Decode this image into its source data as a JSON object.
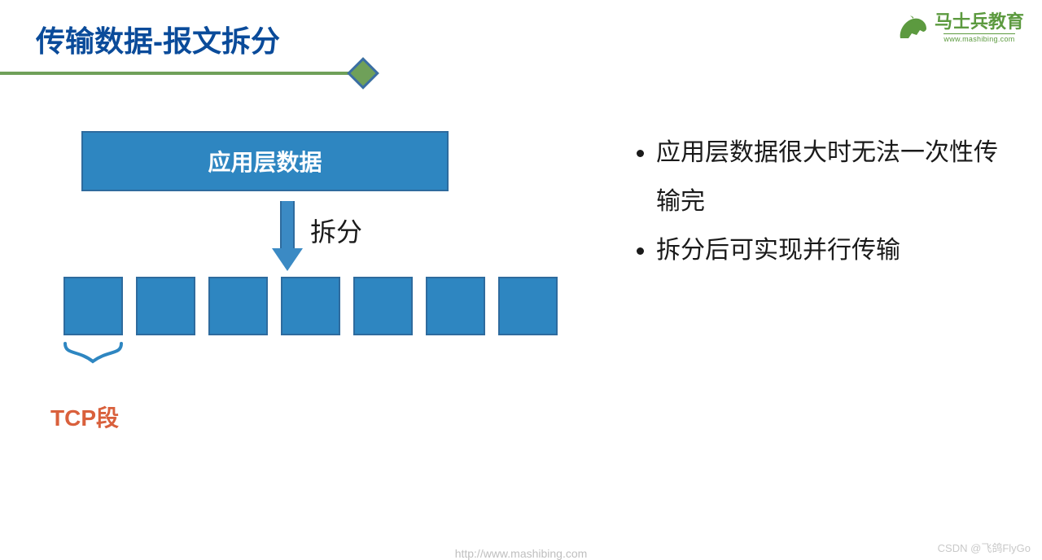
{
  "colors": {
    "title": "#0a4b9a",
    "underline": "#6fa059",
    "underline_thickness": 4,
    "diamond_fill": "#6fa059",
    "diamond_border": "#3b6ea5",
    "app_bar_fill": "#2e86c1",
    "app_bar_border": "#2e6b9e",
    "arrow_fill": "#3b8ac4",
    "arrow_border": "#2e6b9e",
    "arrow_label": "#1a1a1a",
    "segment_fill": "#2e86c1",
    "segment_border": "#2e6b9e",
    "brace": "#2e86c1",
    "tcp_label": "#d9603c",
    "bullet_text": "#1a1a1a",
    "logo_green": "#5c9a3f",
    "csdn": "#c9c9c9",
    "footer": "#bfbfbf"
  },
  "title": "传输数据-报文拆分",
  "logo": {
    "text": "马士兵教育",
    "sub": "www.mashibing.com"
  },
  "diagram": {
    "app_bar_label": "应用层数据",
    "arrow_label": "拆分",
    "num_segments": 7,
    "tcp_label": "TCP段"
  },
  "bullets": [
    "应用层数据很大时无法一次性传输完",
    "拆分后可实现并行传输"
  ],
  "footer_url": "http://www.mashibing.com",
  "csdn": "CSDN @飞鸽FlyGo"
}
